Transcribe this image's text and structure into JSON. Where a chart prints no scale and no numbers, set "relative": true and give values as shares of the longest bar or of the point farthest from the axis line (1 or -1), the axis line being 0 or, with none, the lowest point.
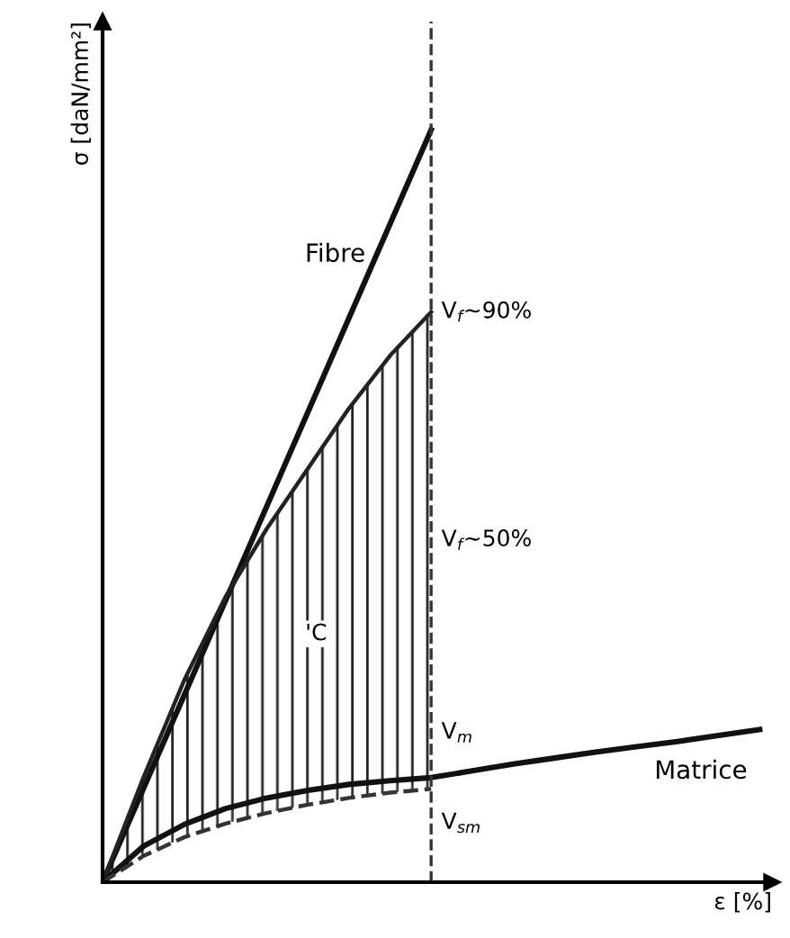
{
  "chart_data": {
    "type": "line",
    "relative": true,
    "xlabel": "ε [%]",
    "ylabel": "σ [daN/mm²]",
    "categories": [
      null,
      null,
      null,
      null,
      null,
      null,
      null,
      null,
      null,
      null,
      null,
      null,
      null,
      null,
      null,
      null,
      null
    ],
    "series": [
      {
        "name": "Fibre",
        "color": "#111111",
        "values": [
          0,
          0.125,
          0.25,
          0.375,
          0.5,
          0.625,
          0.75,
          0.875,
          1,
          null,
          null,
          null,
          null,
          null,
          null,
          null,
          null
        ]
      },
      {
        "color": "#222222",
        "values": [
          0,
          0.14,
          0.27,
          0.38,
          0.47,
          0.55,
          0.63,
          0.7,
          0.758,
          null,
          null,
          null,
          null,
          null,
          null,
          null,
          null
        ],
        "lower": [
          0,
          0.048,
          0.077,
          0.098,
          0.112,
          0.122,
          0.13,
          0.135,
          0.139,
          null,
          null,
          null,
          null,
          null,
          null,
          null,
          null
        ],
        "upper": [
          0,
          0.14,
          0.27,
          0.38,
          0.47,
          0.55,
          0.63,
          0.7,
          0.758,
          null,
          null,
          null,
          null,
          null,
          null,
          null,
          null
        ]
      },
      {
        "name": "Matrice",
        "color": "#111111",
        "values": [
          0,
          0.048,
          0.077,
          0.098,
          0.112,
          0.122,
          0.13,
          0.135,
          0.139,
          0.148,
          0.157,
          0.165,
          0.173,
          0.18,
          0.187,
          0.195,
          0.203
        ]
      },
      {
        "color": "#333333",
        "line_style": "dashed",
        "values": [
          0,
          0.035,
          0.06,
          0.078,
          0.092,
          0.103,
          0.112,
          0.119,
          0.124,
          null,
          null,
          null,
          null,
          null,
          null,
          null,
          null
        ],
        "lower": [
          0,
          0.035,
          0.06,
          0.078,
          0.092,
          0.103,
          0.112,
          0.119,
          0.124,
          null,
          null,
          null,
          null,
          null,
          null,
          null,
          null
        ],
        "upper": [
          0,
          0.048,
          0.077,
          0.098,
          0.112,
          0.122,
          0.13,
          0.135,
          0.139,
          null,
          null,
          null,
          null,
          null,
          null,
          null,
          null
        ]
      }
    ],
    "annotations": [
      "V$_{f}$~90%",
      "V$_{f}$~50%",
      "'C",
      "V$_{m}$",
      "V$_{sm}$"
    ],
    "legend": false
  }
}
